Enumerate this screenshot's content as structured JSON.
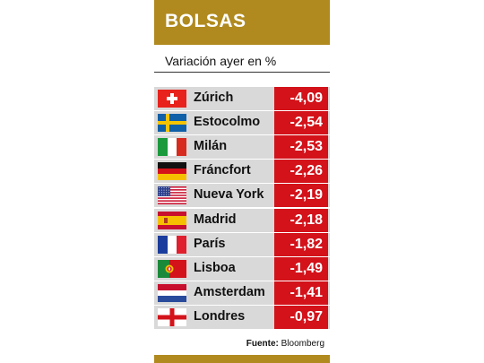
{
  "header": {
    "title": "BOLSAS"
  },
  "subtitle": "Variación ayer en %",
  "source": {
    "label": "Fuente:",
    "name": "Bloomberg"
  },
  "colors": {
    "gold": "#b08a1e",
    "red": "#d3121a",
    "row_bg": "#d9d9d9"
  },
  "chart_data": {
    "type": "table",
    "title": "BOLSAS",
    "subtitle": "Variación ayer en %",
    "columns": [
      "Bolsa",
      "Variación"
    ],
    "rows": [
      {
        "flag": "swiss-flag",
        "city": "Zúrich",
        "value": -4.09,
        "label": "-4,09"
      },
      {
        "flag": "swedish-flag",
        "city": "Estocolmo",
        "value": -2.54,
        "label": "-2,54"
      },
      {
        "flag": "italian-flag",
        "city": "Milán",
        "value": -2.53,
        "label": "-2,53"
      },
      {
        "flag": "german-flag",
        "city": "Fráncfort",
        "value": -2.26,
        "label": "-2,26"
      },
      {
        "flag": "us-flag",
        "city": "Nueva York",
        "value": -2.19,
        "label": "-2,19"
      },
      {
        "flag": "spanish-flag",
        "city": "Madrid",
        "value": -2.18,
        "label": "-2,18"
      },
      {
        "flag": "french-flag",
        "city": "París",
        "value": -1.82,
        "label": "-1,82"
      },
      {
        "flag": "portuguese-flag",
        "city": "Lisboa",
        "value": -1.49,
        "label": "-1,49"
      },
      {
        "flag": "dutch-flag",
        "city": "Amsterdam",
        "value": -1.41,
        "label": "-1,41"
      },
      {
        "flag": "english-flag",
        "city": "Londres",
        "value": -0.97,
        "label": "-0,97"
      }
    ]
  }
}
